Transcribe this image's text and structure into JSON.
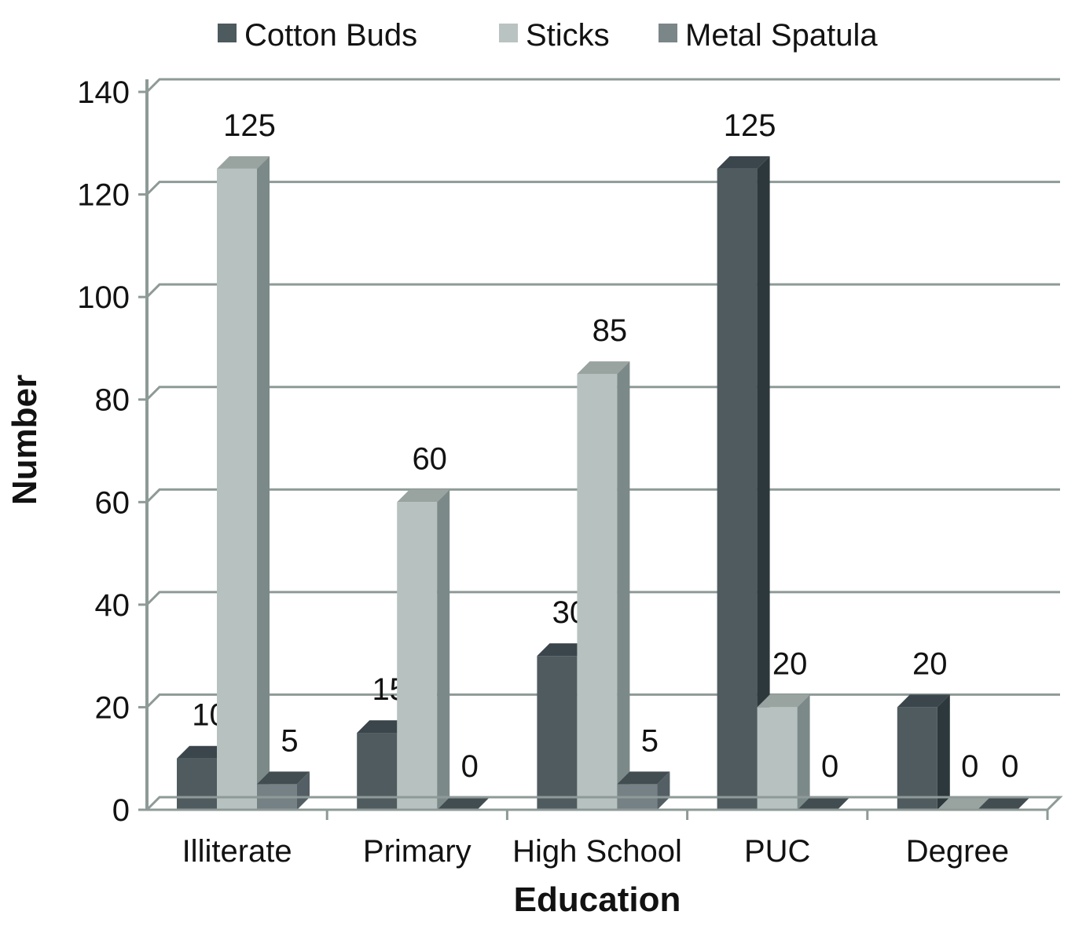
{
  "figure": {
    "background": "#ffffff"
  },
  "chart_data": {
    "type": "bar",
    "projection": "3d-clustered",
    "title": "",
    "categories": [
      "Illiterate",
      "Primary",
      "High School",
      "PUC",
      "Degree"
    ],
    "series": [
      {
        "name": "Cotton Buds",
        "values": [
          10,
          15,
          30,
          125,
          20
        ],
        "colors": {
          "front": "#4f5b5f",
          "top": "#3b464c",
          "side": "#2d383c",
          "legend": "#4d5a5e"
        }
      },
      {
        "name": "Sticks",
        "values": [
          125,
          60,
          85,
          20,
          0
        ],
        "colors": {
          "front": "#b7c2c0",
          "top": "#99a3a0",
          "side": "#7c8989",
          "legend": "#b9c3c1"
        }
      },
      {
        "name": "Metal Spatula",
        "values": [
          5,
          0,
          5,
          0,
          0
        ],
        "colors": {
          "front": "#758184",
          "top": "#424d51",
          "side": "#535f64",
          "legend": "#7b8689"
        }
      }
    ],
    "xlabel": "Education",
    "ylabel": "Number",
    "ylim": [
      0,
      140
    ],
    "ytick_step": 20,
    "ytick_labels": [
      "0",
      "20",
      "40",
      "60",
      "80",
      "100",
      "120",
      "140"
    ],
    "grid": true,
    "legend_position": "top",
    "data_labels": true,
    "axis_color": "#8e9a97",
    "text_color": "#121212"
  }
}
